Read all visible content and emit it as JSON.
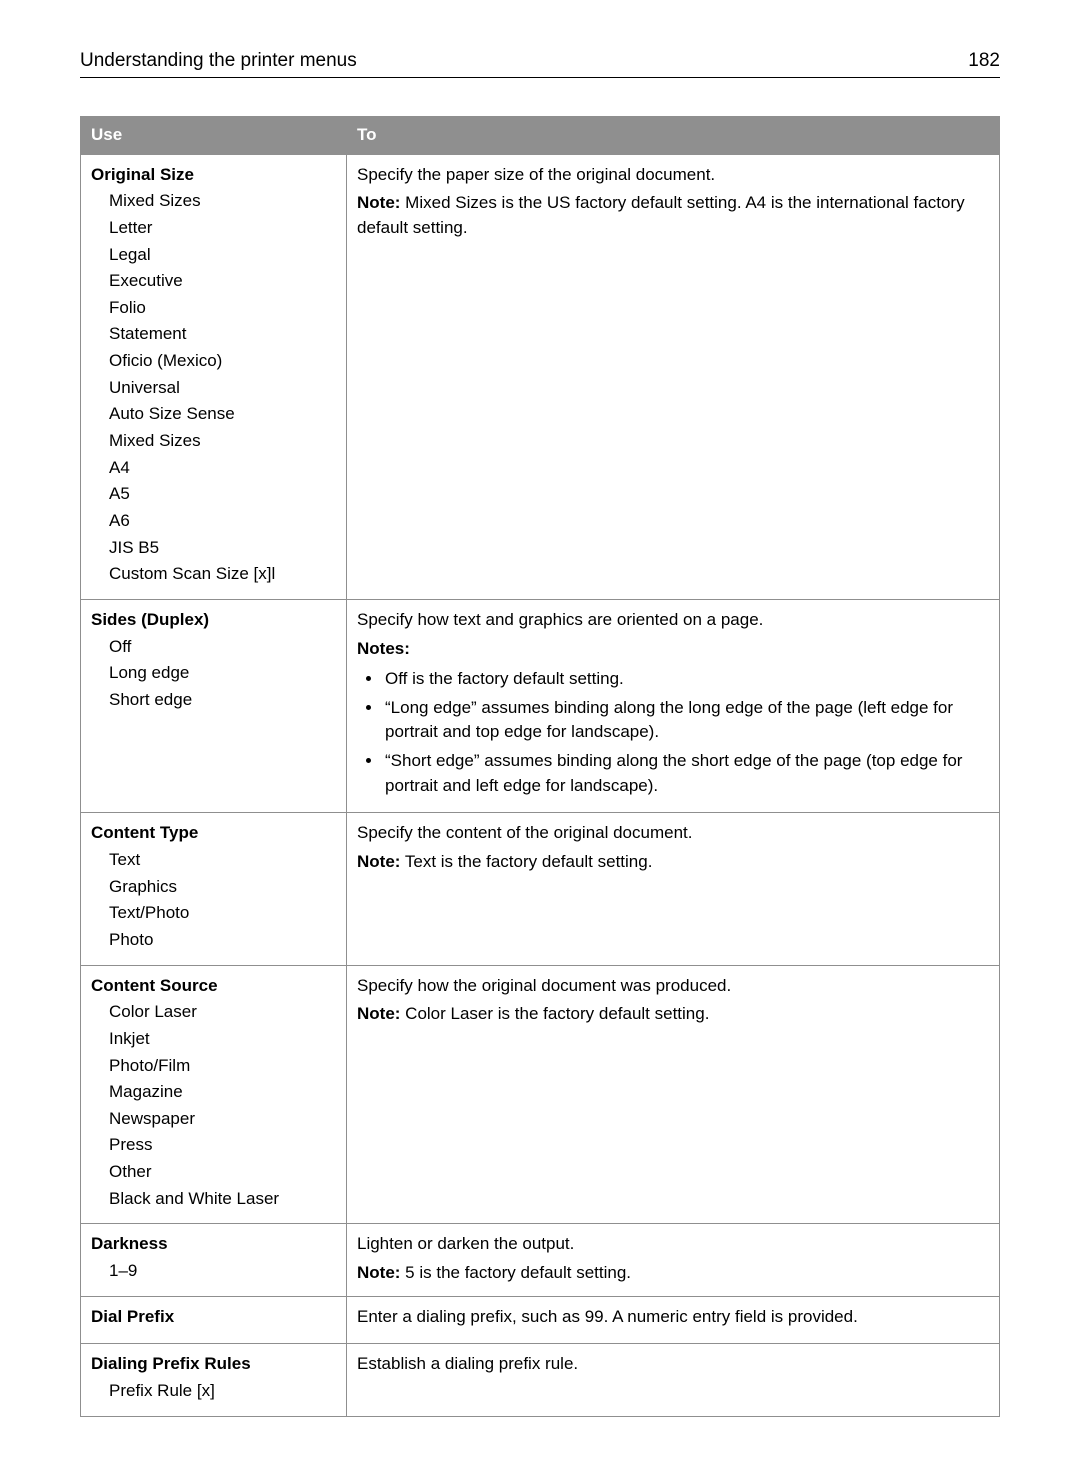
{
  "header": {
    "title": "Understanding the printer menus",
    "page_number": "182"
  },
  "table": {
    "columns": {
      "use": "Use",
      "to": "To"
    },
    "rows": [
      {
        "title": "Original Size",
        "options": [
          "Mixed Sizes",
          "Letter",
          "Legal",
          "Executive",
          "Folio",
          "Statement",
          "Oficio (Mexico)",
          "Universal",
          "Auto Size Sense",
          "Mixed Sizes",
          "A4",
          "A5",
          "A6",
          "JIS B5",
          "Custom Scan Size [x]l"
        ],
        "desc": "Specify the paper size of the original document.",
        "note_label": "Note:",
        "note": " Mixed Sizes is the US factory default setting. A4 is the international factory default setting."
      },
      {
        "title": "Sides (Duplex)",
        "options": [
          "Off",
          "Long edge",
          "Short edge"
        ],
        "desc": "Specify how text and graphics are oriented on a page.",
        "notes_label": "Notes:",
        "bullets": [
          "Off is the factory default setting.",
          "“Long edge” assumes binding along the long edge of the page (left edge for portrait and top edge for landscape).",
          "“Short edge” assumes binding along the short edge of the page (top edge for portrait and left edge for landscape)."
        ]
      },
      {
        "title": "Content Type",
        "options": [
          "Text",
          "Graphics",
          "Text/Photo",
          "Photo"
        ],
        "desc": "Specify the content of the original document.",
        "note_label": "Note:",
        "note": " Text is the factory default setting."
      },
      {
        "title": "Content Source",
        "options": [
          "Color Laser",
          "Inkjet",
          "Photo/Film",
          "Magazine",
          "Newspaper",
          "Press",
          "Other",
          "Black and White Laser"
        ],
        "desc": "Specify how the original document was produced.",
        "note_label": "Note:",
        "note": " Color Laser is the factory default setting."
      },
      {
        "title": "Darkness",
        "options": [
          "1–9"
        ],
        "desc": "Lighten or darken the output.",
        "note_label": "Note:",
        "note": " 5 is the factory default setting."
      },
      {
        "title": "Dial Prefix",
        "options": [],
        "desc": "Enter a dialing prefix, such as 99. A numeric entry field is provided."
      },
      {
        "title": "Dialing Prefix Rules",
        "options": [
          "Prefix Rule [x]"
        ],
        "desc": "Establish a dialing prefix rule."
      }
    ]
  }
}
